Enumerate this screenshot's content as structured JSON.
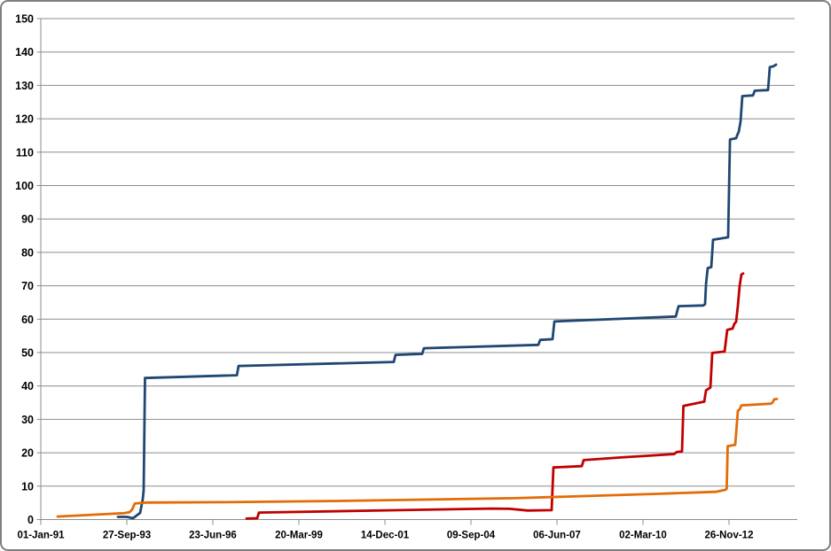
{
  "chart_data": {
    "type": "line",
    "subtype": "cumulative-step",
    "title": "",
    "xlabel": "",
    "ylabel": "",
    "grid": true,
    "legend": "none",
    "background_color": "#FFFFFF",
    "frame_border_color": "#7F7F7F",
    "gridline_color": "#8C8C8C",
    "axis_color": "#8C8C8C",
    "x_axis": {
      "type": "date",
      "tick_labels": [
        "01-Jan-91",
        "27-Sep-93",
        "23-Jun-96",
        "20-Mar-99",
        "14-Dec-01",
        "09-Sep-04",
        "06-Jun-07",
        "02-Mar-10",
        "26-Nov-12"
      ],
      "tick_days": [
        0,
        1000,
        2000,
        3000,
        4000,
        5000,
        6000,
        7000,
        8000
      ],
      "range_days": [
        0,
        8763
      ],
      "tick_interval_days": 1000
    },
    "y_axis": {
      "min": 0,
      "max": 150,
      "step": 10,
      "tick_labels": [
        "0",
        "10",
        "20",
        "30",
        "40",
        "50",
        "60",
        "70",
        "80",
        "90",
        "100",
        "110",
        "120",
        "130",
        "140",
        "150"
      ]
    },
    "series": [
      {
        "name": "series-blue",
        "color": "#1F4772",
        "points_day_value": [
          [
            897,
            0.8
          ],
          [
            1000,
            0.8
          ],
          [
            1072,
            0.4
          ],
          [
            1155,
            2.0
          ],
          [
            1185,
            6.0
          ],
          [
            1196,
            8.7
          ],
          [
            1211,
            42.4
          ],
          [
            2279,
            43.2
          ],
          [
            2299,
            46.0
          ],
          [
            4103,
            47.2
          ],
          [
            4124,
            49.3
          ],
          [
            4433,
            49.6
          ],
          [
            4454,
            51.3
          ],
          [
            5784,
            52.3
          ],
          [
            5805,
            53.8
          ],
          [
            5949,
            54.0
          ],
          [
            5970,
            59.3
          ],
          [
            7382,
            60.8
          ],
          [
            7413,
            63.9
          ],
          [
            7702,
            64.1
          ],
          [
            7722,
            64.5
          ],
          [
            7733,
            70.6
          ],
          [
            7753,
            75.3
          ],
          [
            7794,
            75.6
          ],
          [
            7815,
            83.8
          ],
          [
            7990,
            84.5
          ],
          [
            8011,
            113.8
          ],
          [
            8083,
            114.2
          ],
          [
            8103,
            115.6
          ],
          [
            8114,
            116.1
          ],
          [
            8134,
            119.1
          ],
          [
            8155,
            126.8
          ],
          [
            8279,
            127.0
          ],
          [
            8299,
            128.4
          ],
          [
            8454,
            128.6
          ],
          [
            8474,
            135.5
          ],
          [
            8515,
            135.7
          ],
          [
            8546,
            136.2
          ]
        ]
      },
      {
        "name": "series-red",
        "color": "#C00000",
        "points_day_value": [
          [
            2392,
            0.3
          ],
          [
            2516,
            0.4
          ],
          [
            2536,
            2.1
          ],
          [
            4165,
            2.8
          ],
          [
            5247,
            3.3
          ],
          [
            5454,
            3.2
          ],
          [
            5660,
            2.7
          ],
          [
            5938,
            2.8
          ],
          [
            5959,
            15.6
          ],
          [
            6289,
            16.0
          ],
          [
            6310,
            17.8
          ],
          [
            6743,
            18.6
          ],
          [
            7361,
            19.6
          ],
          [
            7392,
            20.2
          ],
          [
            7454,
            20.4
          ],
          [
            7470,
            34.0
          ],
          [
            7712,
            35.3
          ],
          [
            7733,
            38.7
          ],
          [
            7784,
            39.5
          ],
          [
            7805,
            49.9
          ],
          [
            7949,
            50.3
          ],
          [
            7980,
            56.8
          ],
          [
            8042,
            57.2
          ],
          [
            8062,
            58.6
          ],
          [
            8083,
            59.2
          ],
          [
            8103,
            64.0
          ],
          [
            8124,
            70.0
          ],
          [
            8144,
            73.4
          ],
          [
            8165,
            73.7
          ]
        ]
      },
      {
        "name": "series-orange",
        "color": "#E36C09",
        "points_day_value": [
          [
            196,
            0.9
          ],
          [
            969,
            1.9
          ],
          [
            1031,
            2.2
          ],
          [
            1062,
            3.0
          ],
          [
            1093,
            4.8
          ],
          [
            1227,
            5.1
          ],
          [
            2103,
            5.2
          ],
          [
            3546,
            5.6
          ],
          [
            5505,
            6.4
          ],
          [
            7155,
            7.7
          ],
          [
            7846,
            8.3
          ],
          [
            7959,
            8.9
          ],
          [
            7973,
            9.2
          ],
          [
            7985,
            22.0
          ],
          [
            8072,
            22.4
          ],
          [
            8103,
            32.6
          ],
          [
            8124,
            33.0
          ],
          [
            8144,
            34.2
          ],
          [
            8484,
            34.7
          ],
          [
            8505,
            35.0
          ],
          [
            8526,
            36.0
          ],
          [
            8557,
            36.1
          ]
        ]
      }
    ]
  }
}
